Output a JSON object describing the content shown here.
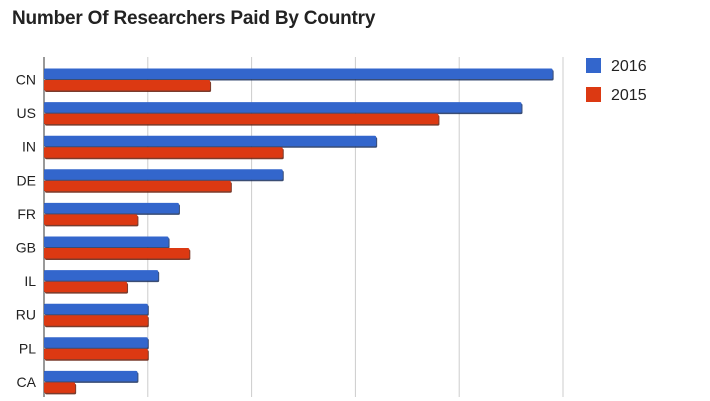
{
  "chart_data": {
    "type": "bar",
    "orientation": "horizontal",
    "title": "Number Of Researchers Paid By Country",
    "xlabel": "",
    "ylabel": "",
    "categories": [
      "CN",
      "US",
      "IN",
      "DE",
      "FR",
      "GB",
      "IL",
      "RU",
      "PL",
      "CA"
    ],
    "series": [
      {
        "name": "2016",
        "color": "#3366cc",
        "values": [
          49,
          46,
          32,
          23,
          13,
          12,
          11,
          10,
          10,
          9
        ]
      },
      {
        "name": "2015",
        "color": "#dc3912",
        "values": [
          16,
          38,
          23,
          18,
          9,
          14,
          8,
          10,
          10,
          3
        ]
      }
    ],
    "xlim": [
      0,
      50
    ],
    "xtick_step": 10,
    "grid": true,
    "legend_position": "right"
  }
}
